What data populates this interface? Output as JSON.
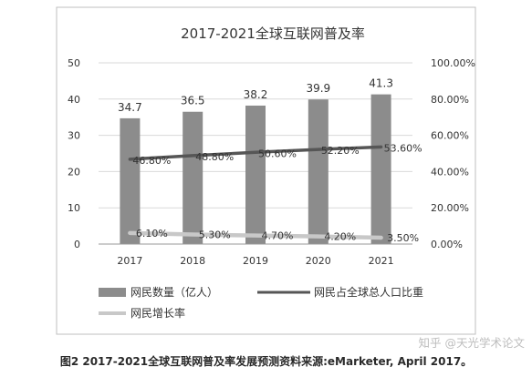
{
  "caption": "图2 2017-2021全球互联网普及率发展预测资料来源:eMarketer, April 2017。",
  "watermark": "知乎 @天光学术论文",
  "colors": {
    "bar": "#8c8c8c",
    "share_line": "#565656",
    "growth_line": "#c8c8c8",
    "grid": "#d9d9d9",
    "text": "#333333",
    "frame": "#bfbfbf"
  },
  "chart_data": {
    "type": "bar",
    "title": "2017-2021全球互联网普及率",
    "categories": [
      "2017",
      "2018",
      "2019",
      "2020",
      "2021"
    ],
    "y_left": {
      "lim": [
        0,
        50
      ],
      "ticks": [
        "0",
        "10",
        "20",
        "30",
        "40",
        "50"
      ],
      "tick_values": [
        0,
        10,
        20,
        30,
        40,
        50
      ]
    },
    "y_right": {
      "lim": [
        0,
        100
      ],
      "ticks": [
        "0.00%",
        "20.00%",
        "40.00%",
        "60.00%",
        "80.00%",
        "100.00%"
      ],
      "tick_values": [
        0,
        20,
        40,
        60,
        80,
        100
      ]
    },
    "grid": true,
    "legend_position": "bottom",
    "series": [
      {
        "name": "网民数量（亿人）",
        "kind": "bar",
        "axis": "left",
        "values": [
          34.7,
          36.5,
          38.2,
          39.9,
          41.3
        ],
        "labels": [
          "34.7",
          "36.5",
          "38.2",
          "39.9",
          "41.3"
        ]
      },
      {
        "name": "网民占全球总人口比重",
        "kind": "line",
        "axis": "right",
        "values": [
          46.8,
          48.8,
          50.6,
          52.2,
          53.6
        ],
        "labels": [
          "46.80%",
          "48.80%",
          "50.60%",
          "52.20%",
          "53.60%"
        ]
      },
      {
        "name": "网民增长率",
        "kind": "line",
        "axis": "right",
        "values": [
          6.1,
          5.3,
          4.7,
          4.2,
          3.5
        ],
        "labels": [
          "6.10%",
          "5.30%",
          "4.70%",
          "4.20%",
          "3.50%"
        ]
      }
    ]
  }
}
